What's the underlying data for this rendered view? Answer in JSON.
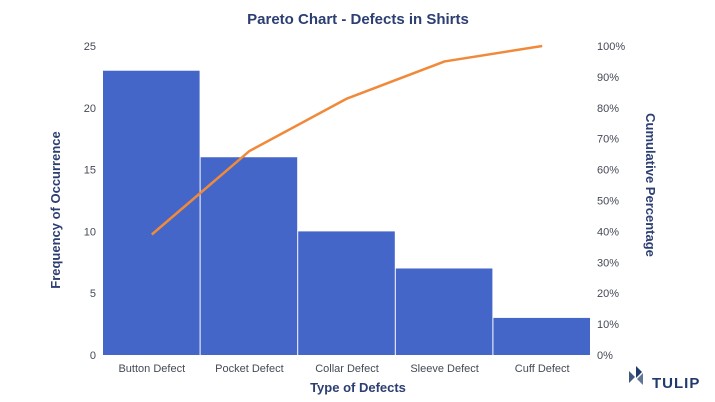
{
  "chart_data": {
    "type": "bar",
    "title": "Pareto Chart - Defects in Shirts",
    "xlabel": "Type of Defects",
    "ylabel": "Frequency of Occurrence",
    "y2label": "Cumulative Percentage",
    "categories": [
      "Button Defect",
      "Pocket Defect",
      "Collar Defect",
      "Sleeve Defect",
      "Cuff Defect"
    ],
    "series": [
      {
        "type": "bar",
        "axis": "left",
        "values": [
          23,
          16,
          10,
          7,
          3
        ],
        "color": "#4466c9"
      },
      {
        "type": "line",
        "axis": "right",
        "values": [
          39,
          66,
          83,
          95,
          100
        ],
        "color": "#f08a3a"
      }
    ],
    "ylim": [
      0,
      25
    ],
    "yticks": [
      0,
      5,
      10,
      15,
      20,
      25
    ],
    "y2lim": [
      0,
      100
    ],
    "y2ticks": [
      "0%",
      "10%",
      "20%",
      "30%",
      "40%",
      "50%",
      "60%",
      "70%",
      "80%",
      "90%",
      "100%"
    ],
    "grid": false,
    "legend": "none"
  },
  "brand": {
    "name": "TULIP",
    "color": "#1f3a6b"
  }
}
